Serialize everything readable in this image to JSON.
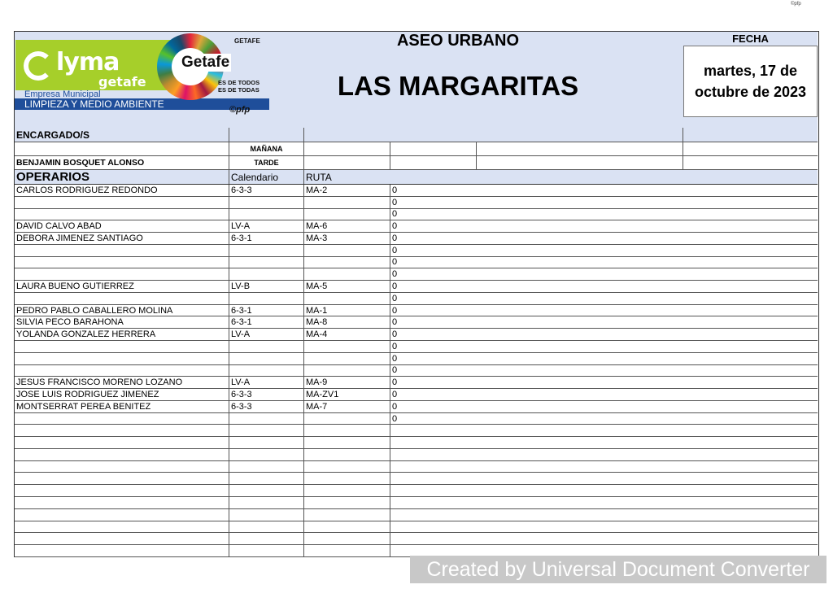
{
  "corner_mark": "©pfp",
  "logo": {
    "brand": "lyma",
    "brand_sub": "getafe",
    "company": "Empresa Municipal",
    "department": "LIMPIEZA Y MEDIO AMBIENTE",
    "city": "Getafe",
    "ayuntamiento": "GETAFE",
    "slogan1": "ES DE TODOS",
    "slogan2": "ES DE TODAS",
    "credit": "©pfp"
  },
  "header": {
    "title": "ASEO URBANO",
    "place": "LAS MARGARITAS",
    "date_label": "FECHA",
    "date_value": "martes, 17 de octubre de 2023"
  },
  "encargados": {
    "label": "ENCARGADO/S",
    "morning": "MAÑANA",
    "afternoon": "TARDE",
    "name": "BENJAMIN BOSQUET ALONSO"
  },
  "operarios": {
    "label": "OPERARIOS",
    "col_calendar": "Calendario",
    "col_route": "RUTA",
    "rows": [
      [
        "CARLOS RODRIGUEZ REDONDO",
        "6-3-3",
        "MA-2",
        "0"
      ],
      [
        "",
        "",
        "",
        "0"
      ],
      [
        "",
        "",
        "",
        "0"
      ],
      [
        "DAVID CALVO ABAD",
        "LV-A",
        "MA-6",
        "0"
      ],
      [
        "DEBORA JIMENEZ SANTIAGO",
        "6-3-1",
        "MA-3",
        "0"
      ],
      [
        "",
        "",
        "",
        "0"
      ],
      [
        "",
        "",
        "",
        "0"
      ],
      [
        "",
        "",
        "",
        "0"
      ],
      [
        "LAURA BUENO GUTIERREZ",
        "LV-B",
        "MA-5",
        "0"
      ],
      [
        "",
        "",
        "",
        "0"
      ],
      [
        "PEDRO PABLO CABALLERO MOLINA",
        "6-3-1",
        "MA-1",
        "0"
      ],
      [
        "SILVIA PECO BARAHONA",
        "6-3-1",
        "MA-8",
        "0"
      ],
      [
        "YOLANDA GONZALEZ HERRERA",
        "LV-A",
        "MA-4",
        "0"
      ],
      [
        "",
        "",
        "",
        "0"
      ],
      [
        "",
        "",
        "",
        "0"
      ],
      [
        "",
        "",
        "",
        "0"
      ],
      [
        "JESUS FRANCISCO MORENO LOZANO",
        "LV-A",
        "MA-9",
        "0"
      ],
      [
        "JOSE LUIS RODRIGUEZ JIMENEZ",
        "6-3-3",
        "MA-ZV1",
        "0"
      ],
      [
        "MONTSERRAT PEREA BENITEZ",
        "6-3-3",
        "MA-7",
        "0"
      ],
      [
        "",
        "",
        "",
        "0"
      ],
      [
        "",
        "",
        "",
        ""
      ],
      [
        "",
        "",
        "",
        ""
      ],
      [
        "",
        "",
        "",
        ""
      ],
      [
        "",
        "",
        "",
        ""
      ],
      [
        "",
        "",
        "",
        ""
      ],
      [
        "",
        "",
        "",
        ""
      ],
      [
        "",
        "",
        "",
        ""
      ],
      [
        "",
        "",
        "",
        ""
      ],
      [
        "",
        "",
        "",
        ""
      ],
      [
        "",
        "",
        "",
        ""
      ],
      [
        "",
        "",
        "",
        ""
      ]
    ]
  },
  "watermark": "Created by Universal Document Converter"
}
